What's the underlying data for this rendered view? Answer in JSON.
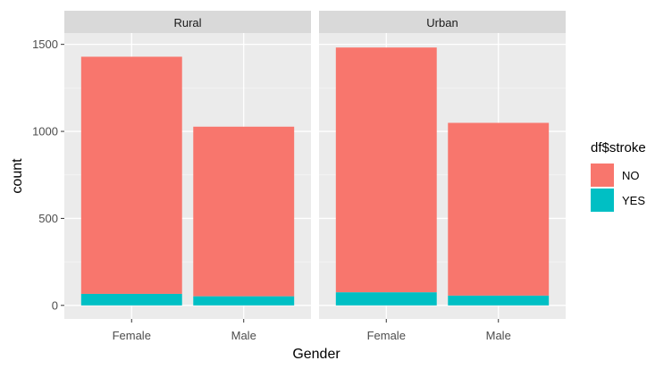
{
  "chart_data": {
    "type": "bar",
    "stacked": true,
    "facet_by": "residence_type",
    "facets": [
      {
        "name": "Rural",
        "categories": [
          "Female",
          "Male"
        ]
      },
      {
        "name": "Urban",
        "categories": [
          "Female",
          "Male"
        ]
      }
    ],
    "series": [
      {
        "name": "NO",
        "color": "#F8766D",
        "values": [
          [
            1363,
            975
          ],
          [
            1407,
            993
          ]
        ]
      },
      {
        "name": "YES",
        "color": "#00BFC4",
        "values": [
          [
            66,
            52
          ],
          [
            75,
            56
          ]
        ]
      }
    ],
    "xlabel": "Gender",
    "ylabel": "count",
    "ylim": [
      -78,
      1565
    ],
    "yticks": [
      0,
      500,
      1000,
      1500
    ],
    "grid": true,
    "legend": {
      "title": "df$stroke",
      "entries": [
        "NO",
        "YES"
      ],
      "placement": "right"
    }
  }
}
